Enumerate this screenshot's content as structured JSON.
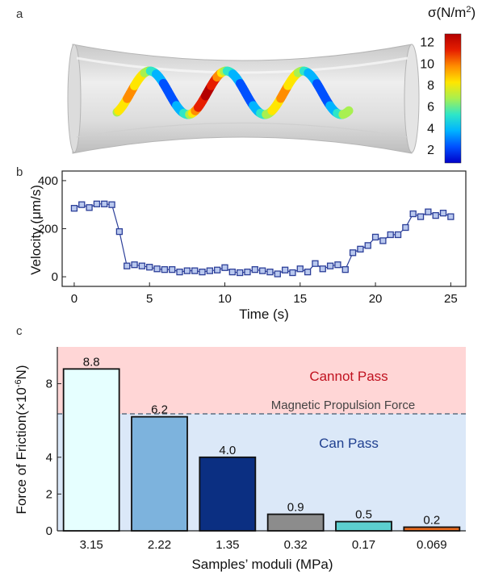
{
  "panel_a": {
    "letter": "a",
    "colorbar": {
      "title_main": "σ(N/m",
      "title_exp": "2",
      "title_tail": ")",
      "ticks": [
        "12",
        "10",
        "8",
        "6",
        "4",
        "2"
      ],
      "tick_values": [
        12,
        10,
        8,
        6,
        4,
        2
      ],
      "range": [
        0.8,
        12.8
      ],
      "colormap": [
        "#0000c8",
        "#0050ff",
        "#00b4ff",
        "#2ee6c8",
        "#a8f050",
        "#ffe600",
        "#ff8c00",
        "#e61e00",
        "#b40000"
      ]
    }
  },
  "panel_b": {
    "letter": "b",
    "marker_color": "#2c3f99",
    "marker_fill": "#b9c8ee"
  },
  "panel_c": {
    "letter": "c",
    "threshold_label": "Magnetic Propulsion Force",
    "threshold_value": 6.2,
    "upper_region_label": "Cannot Pass",
    "lower_region_label": "Can Pass",
    "upper_region_color": "#ffd6d6",
    "lower_region_color": "#dbe8f8",
    "upper_text_color": "#c0111f",
    "lower_text_color": "#1f3f8f"
  },
  "chart_data": [
    {
      "type": "line",
      "panel": "b",
      "title": "",
      "xlabel": "Time (s)",
      "ylabel": "Velocity (μm/s)",
      "xlim": [
        -0.8,
        26
      ],
      "ylim": [
        -40,
        440
      ],
      "xticks": [
        0,
        5,
        10,
        15,
        20,
        25
      ],
      "yticks": [
        0,
        200,
        400
      ],
      "grid": false,
      "series": [
        {
          "x": [
            0,
            0.5,
            1.0,
            1.5,
            2.0,
            2.5,
            3.0,
            3.5,
            4.0,
            4.5,
            5.0,
            5.5,
            6.0,
            6.5,
            7.0,
            7.5,
            8.0,
            8.5,
            9.0,
            9.5,
            10.0,
            10.5,
            11.0,
            11.5,
            12.0,
            12.5,
            13.0,
            13.5,
            14.0,
            14.5,
            15.0,
            15.5,
            16.0,
            16.5,
            17.0,
            17.5,
            18.0,
            18.5,
            19.0,
            19.5,
            20.0,
            20.5,
            21.0,
            21.5,
            22.0,
            22.5,
            23.0,
            23.5,
            24.0,
            24.5,
            25.0
          ],
          "y": [
            285,
            300,
            288,
            303,
            303,
            300,
            188,
            45,
            50,
            45,
            40,
            33,
            30,
            30,
            20,
            25,
            25,
            20,
            25,
            28,
            38,
            20,
            17,
            20,
            30,
            25,
            20,
            12,
            28,
            17,
            33,
            20,
            55,
            33,
            45,
            50,
            30,
            100,
            115,
            130,
            165,
            150,
            175,
            175,
            205,
            262,
            250,
            270,
            255,
            265,
            250
          ]
        }
      ]
    },
    {
      "type": "bar",
      "panel": "c",
      "title": "",
      "xlabel": "Samples’ moduli (MPa)",
      "ylabel_main": "Force of Friction(×10",
      "ylabel_exp": "-6",
      "ylabel_tail": "N)",
      "ylim": [
        0,
        10
      ],
      "yticks": [
        0,
        2,
        4,
        8
      ],
      "grid": false,
      "categories": [
        "3.15",
        "2.22",
        "1.35",
        "0.32",
        "0.17",
        "0.069"
      ],
      "values": [
        8.8,
        6.2,
        4.0,
        0.9,
        0.5,
        0.2
      ],
      "value_labels": [
        "8.8",
        "6.2",
        "4.0",
        "0.9",
        "0.5",
        "0.2"
      ],
      "colors": [
        "#e6ffff",
        "#7db3dd",
        "#0b2f82",
        "#8c8c8c",
        "#5ccfcf",
        "#e86a1e"
      ]
    }
  ]
}
